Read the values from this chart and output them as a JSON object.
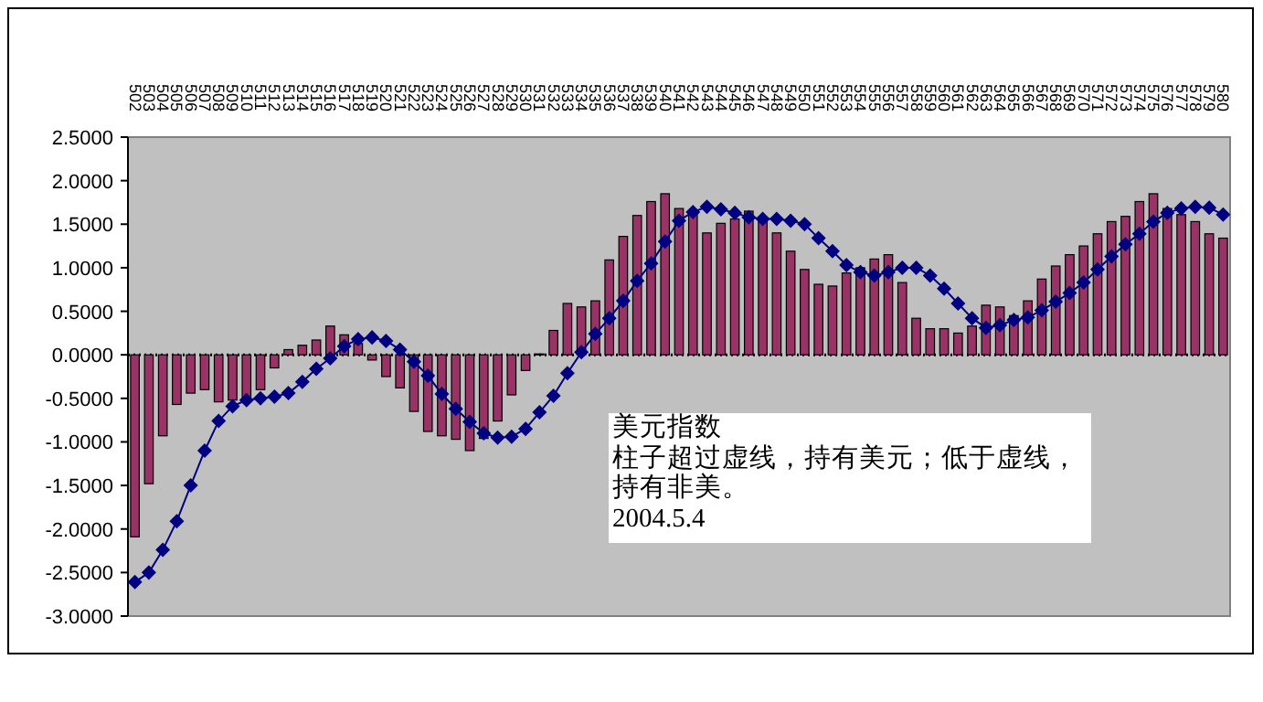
{
  "chart_data": {
    "type": "bar",
    "categories": [
      "502",
      "503",
      "504",
      "505",
      "506",
      "507",
      "508",
      "509",
      "510",
      "511",
      "512",
      "513",
      "514",
      "515",
      "516",
      "517",
      "518",
      "519",
      "520",
      "521",
      "522",
      "523",
      "524",
      "525",
      "526",
      "527",
      "528",
      "529",
      "530",
      "531",
      "532",
      "533",
      "534",
      "535",
      "536",
      "537",
      "538",
      "539",
      "540",
      "541",
      "542",
      "543",
      "544",
      "545",
      "546",
      "547",
      "548",
      "549",
      "550",
      "551",
      "552",
      "553",
      "554",
      "555",
      "556",
      "557",
      "558",
      "559",
      "560",
      "561",
      "562",
      "563",
      "564",
      "565",
      "566",
      "567",
      "568",
      "569",
      "570",
      "571",
      "572",
      "573",
      "574",
      "575",
      "576",
      "577",
      "578",
      "579",
      "580"
    ],
    "series": [
      {
        "color": "#993366",
        "values": [
          -2.09,
          -1.48,
          -0.93,
          -0.57,
          -0.44,
          -0.4,
          -0.54,
          -0.52,
          -0.54,
          -0.4,
          -0.15,
          0.06,
          0.11,
          0.17,
          0.33,
          0.23,
          0.13,
          -0.06,
          -0.25,
          -0.38,
          -0.65,
          -0.88,
          -0.93,
          -0.97,
          -1.1,
          -0.96,
          -0.76,
          -0.46,
          -0.18,
          0.01,
          0.28,
          0.59,
          0.55,
          0.62,
          1.09,
          1.36,
          1.6,
          1.76,
          1.85,
          1.68,
          1.61,
          1.4,
          1.51,
          1.56,
          1.65,
          1.53,
          1.4,
          1.19,
          0.98,
          0.81,
          0.79,
          0.94,
          1.0,
          1.1,
          1.15,
          0.83,
          0.42,
          0.3,
          0.3,
          0.25,
          0.33,
          0.57,
          0.55,
          0.45,
          0.62,
          0.87,
          1.02,
          1.15,
          1.25,
          1.39,
          1.53,
          1.59,
          1.76,
          1.85,
          1.68,
          1.61,
          1.53,
          1.39,
          1.34
        ]
      },
      {
        "type": "line",
        "color": "#000080",
        "values": [
          -2.61,
          -2.5,
          -2.24,
          -1.91,
          -1.5,
          -1.1,
          -0.76,
          -0.59,
          -0.52,
          -0.5,
          -0.48,
          -0.44,
          -0.31,
          -0.16,
          -0.04,
          0.1,
          0.18,
          0.2,
          0.16,
          0.06,
          -0.08,
          -0.24,
          -0.45,
          -0.62,
          -0.77,
          -0.9,
          -0.95,
          -0.94,
          -0.85,
          -0.66,
          -0.47,
          -0.21,
          0.03,
          0.24,
          0.42,
          0.62,
          0.85,
          1.05,
          1.3,
          1.54,
          1.64,
          1.7,
          1.67,
          1.63,
          1.58,
          1.56,
          1.56,
          1.54,
          1.5,
          1.34,
          1.19,
          1.03,
          0.95,
          0.91,
          0.95,
          1.0,
          1.0,
          0.91,
          0.76,
          0.59,
          0.42,
          0.31,
          0.34,
          0.4,
          0.43,
          0.51,
          0.61,
          0.71,
          0.83,
          0.98,
          1.13,
          1.27,
          1.39,
          1.53,
          1.63,
          1.68,
          1.7,
          1.69,
          1.61
        ]
      }
    ],
    "marker": "diamond",
    "ylim": [
      -3,
      2.5
    ],
    "yticks": [
      {
        "value": 2.5,
        "label": "2.5000"
      },
      {
        "value": 2,
        "label": "2.0000"
      },
      {
        "value": 1.5,
        "label": "1.5000"
      },
      {
        "value": 1,
        "label": "1.0000"
      },
      {
        "value": 0.5,
        "label": "0.5000"
      },
      {
        "value": 0,
        "label": "0.0000"
      },
      {
        "value": -0.5,
        "label": "-0.5000"
      },
      {
        "value": -1,
        "label": "-1.0000"
      },
      {
        "value": -1.5,
        "label": "-1.5000"
      },
      {
        "value": -2,
        "label": "-2.0000"
      },
      {
        "value": -2.5,
        "label": "-2.5000"
      },
      {
        "value": -3,
        "label": "-3.0000"
      }
    ],
    "ref_lines": [
      {
        "axis": "y",
        "value": 0,
        "line_style": "dotted",
        "color": "#000000"
      }
    ],
    "annotations": [
      "美元指数",
      "柱子超过虚线，持有美元；低于虚线，持有非美。",
      "2004.5.4"
    ]
  }
}
